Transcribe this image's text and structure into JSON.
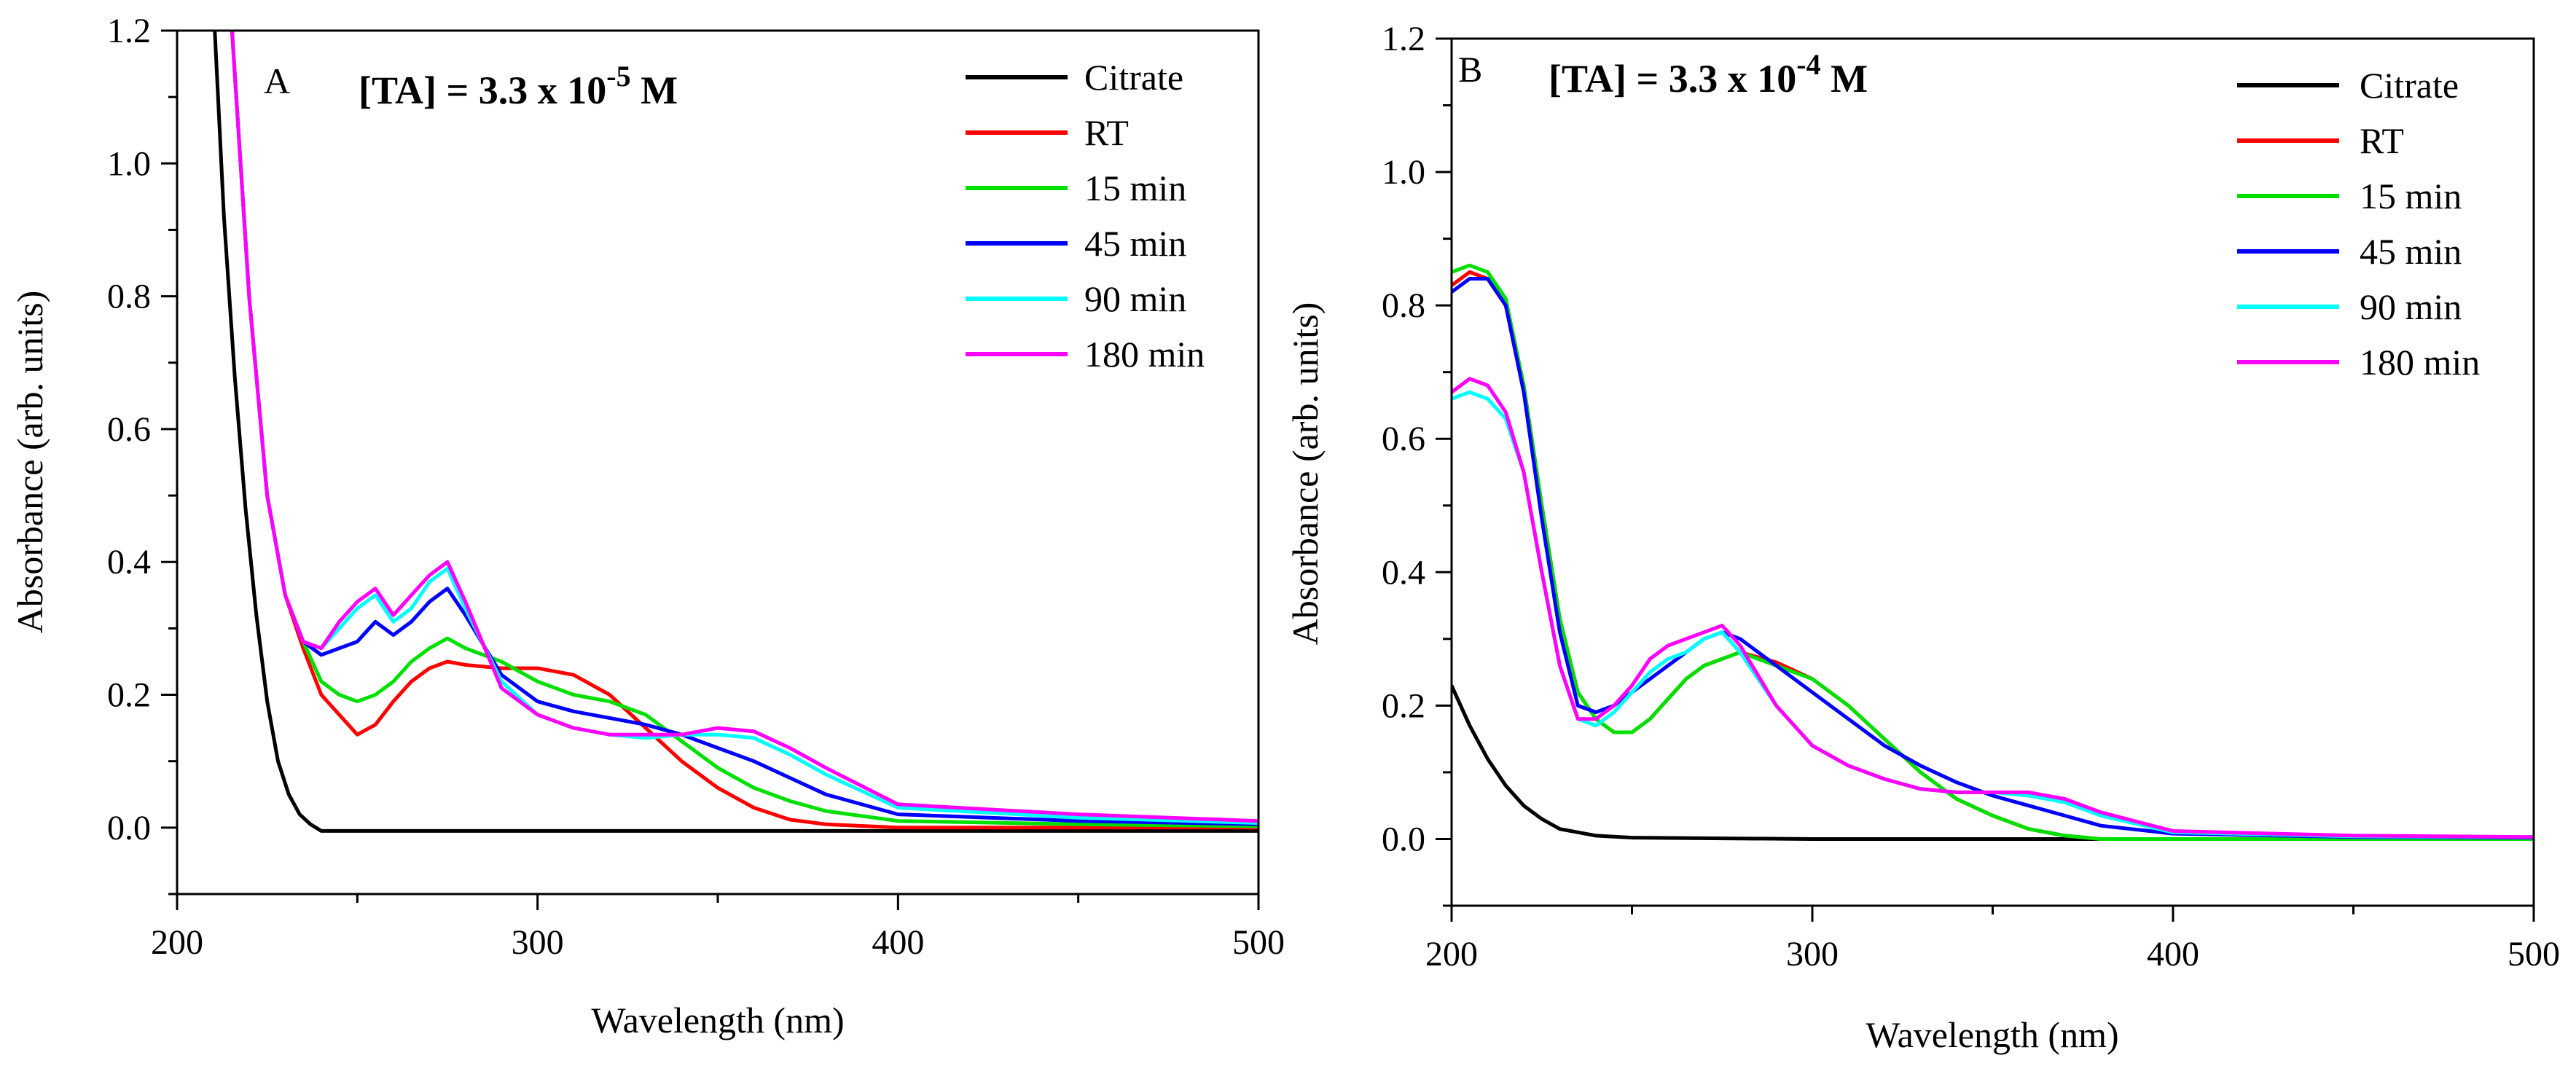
{
  "chart_data": [
    {
      "type": "line",
      "panel_label": "A",
      "annotation": {
        "prefix": "[TA] = 3.3 x 10",
        "exponent": "-5",
        "suffix": " M"
      },
      "xlabel": "Wavelength (nm)",
      "ylabel": "Absorbance (arb. units)",
      "xlim": [
        200,
        500
      ],
      "ylim": [
        -0.1,
        1.2
      ],
      "xticks": [
        200,
        300,
        400,
        500
      ],
      "yticks": [
        0.0,
        0.2,
        0.4,
        0.6,
        0.8,
        1.0,
        1.2
      ],
      "legend_position": "top-right",
      "grid": false,
      "series": [
        {
          "name": "Citrate",
          "color": "#000000",
          "x": [
            210,
            213,
            216,
            219,
            222,
            225,
            228,
            231,
            234,
            237,
            240,
            250,
            300,
            400,
            500
          ],
          "y": [
            1.25,
            0.92,
            0.68,
            0.48,
            0.32,
            0.19,
            0.1,
            0.05,
            0.02,
            0.005,
            -0.005,
            -0.005,
            -0.005,
            -0.005,
            -0.005
          ]
        },
        {
          "name": "RT",
          "color": "#ff0000",
          "x": [
            215,
            220,
            225,
            230,
            235,
            240,
            245,
            250,
            255,
            260,
            265,
            270,
            275,
            280,
            290,
            300,
            310,
            320,
            330,
            340,
            350,
            360,
            370,
            380,
            400,
            450,
            500
          ],
          "y": [
            1.22,
            0.8,
            0.5,
            0.35,
            0.27,
            0.2,
            0.17,
            0.14,
            0.155,
            0.19,
            0.22,
            0.24,
            0.25,
            0.245,
            0.24,
            0.24,
            0.23,
            0.2,
            0.15,
            0.1,
            0.06,
            0.03,
            0.012,
            0.005,
            0.0,
            0.0,
            0.0
          ]
        },
        {
          "name": "15 min",
          "color": "#00e000",
          "x": [
            215,
            220,
            225,
            230,
            235,
            240,
            245,
            250,
            255,
            260,
            265,
            270,
            275,
            280,
            290,
            300,
            310,
            320,
            330,
            340,
            350,
            360,
            370,
            380,
            400,
            450,
            500
          ],
          "y": [
            1.22,
            0.8,
            0.5,
            0.35,
            0.28,
            0.22,
            0.2,
            0.19,
            0.2,
            0.22,
            0.25,
            0.27,
            0.285,
            0.27,
            0.25,
            0.22,
            0.2,
            0.19,
            0.17,
            0.13,
            0.09,
            0.06,
            0.04,
            0.025,
            0.01,
            0.005,
            0.002
          ]
        },
        {
          "name": "45 min",
          "color": "#0000ff",
          "x": [
            215,
            220,
            225,
            230,
            235,
            240,
            245,
            250,
            255,
            260,
            265,
            270,
            275,
            280,
            290,
            300,
            310,
            320,
            330,
            340,
            350,
            360,
            370,
            380,
            400,
            450,
            500
          ],
          "y": [
            1.22,
            0.8,
            0.5,
            0.35,
            0.28,
            0.26,
            0.27,
            0.28,
            0.31,
            0.29,
            0.31,
            0.34,
            0.36,
            0.32,
            0.23,
            0.19,
            0.175,
            0.165,
            0.155,
            0.14,
            0.12,
            0.1,
            0.075,
            0.05,
            0.02,
            0.01,
            0.005
          ]
        },
        {
          "name": "90 min",
          "color": "#00ffff",
          "x": [
            215,
            220,
            225,
            230,
            235,
            240,
            245,
            250,
            255,
            260,
            265,
            270,
            275,
            280,
            290,
            300,
            310,
            320,
            330,
            340,
            350,
            360,
            370,
            380,
            400,
            450,
            500
          ],
          "y": [
            1.22,
            0.8,
            0.5,
            0.35,
            0.28,
            0.27,
            0.3,
            0.33,
            0.35,
            0.31,
            0.33,
            0.37,
            0.39,
            0.33,
            0.22,
            0.17,
            0.15,
            0.14,
            0.135,
            0.14,
            0.14,
            0.135,
            0.11,
            0.08,
            0.03,
            0.015,
            0.007
          ]
        },
        {
          "name": "180 min",
          "color": "#ff00ff",
          "x": [
            215,
            220,
            225,
            230,
            235,
            240,
            245,
            250,
            255,
            260,
            265,
            270,
            275,
            280,
            290,
            300,
            310,
            320,
            330,
            340,
            350,
            360,
            370,
            380,
            400,
            450,
            500
          ],
          "y": [
            1.22,
            0.8,
            0.5,
            0.35,
            0.28,
            0.27,
            0.31,
            0.34,
            0.36,
            0.32,
            0.35,
            0.38,
            0.4,
            0.34,
            0.21,
            0.17,
            0.15,
            0.14,
            0.14,
            0.14,
            0.15,
            0.145,
            0.12,
            0.09,
            0.035,
            0.02,
            0.01
          ]
        }
      ]
    },
    {
      "type": "line",
      "panel_label": "B",
      "annotation": {
        "prefix": "[TA] = 3.3 x 10",
        "exponent": "-4",
        "suffix": " M"
      },
      "xlabel": "Wavelength (nm)",
      "ylabel": "Absorbance (arb. units)",
      "xlim": [
        200,
        500
      ],
      "ylim": [
        -0.1,
        1.2
      ],
      "xticks": [
        200,
        300,
        400,
        500
      ],
      "yticks": [
        0.0,
        0.2,
        0.4,
        0.6,
        0.8,
        1.0,
        1.2
      ],
      "legend_position": "top-right",
      "grid": false,
      "series": [
        {
          "name": "Citrate",
          "color": "#000000",
          "x": [
            200,
            205,
            210,
            215,
            220,
            225,
            230,
            235,
            240,
            250,
            300,
            400,
            500
          ],
          "y": [
            0.23,
            0.17,
            0.12,
            0.08,
            0.05,
            0.03,
            0.015,
            0.01,
            0.005,
            0.002,
            0.0,
            0.0,
            0.0
          ]
        },
        {
          "name": "RT",
          "color": "#ff0000",
          "x": [
            200,
            205,
            210,
            215,
            220,
            225,
            230,
            235,
            240,
            245,
            250,
            255,
            260,
            265,
            270,
            275,
            280,
            290,
            300,
            310,
            320,
            330,
            340,
            350,
            360,
            370,
            380,
            400,
            450,
            500
          ],
          "y": [
            0.83,
            0.85,
            0.84,
            0.8,
            0.68,
            0.5,
            0.33,
            0.22,
            0.18,
            0.16,
            0.16,
            0.18,
            0.21,
            0.24,
            0.26,
            0.27,
            0.28,
            0.265,
            0.24,
            0.2,
            0.15,
            0.1,
            0.06,
            0.035,
            0.015,
            0.005,
            0.0,
            0.0,
            0.0,
            0.0
          ]
        },
        {
          "name": "15 min",
          "color": "#00e000",
          "x": [
            200,
            205,
            210,
            215,
            220,
            225,
            230,
            235,
            240,
            245,
            250,
            255,
            260,
            265,
            270,
            275,
            280,
            290,
            300,
            310,
            320,
            330,
            340,
            350,
            360,
            370,
            380,
            400,
            450,
            500
          ],
          "y": [
            0.85,
            0.86,
            0.85,
            0.81,
            0.68,
            0.5,
            0.33,
            0.22,
            0.18,
            0.16,
            0.16,
            0.18,
            0.21,
            0.24,
            0.26,
            0.27,
            0.28,
            0.26,
            0.24,
            0.2,
            0.15,
            0.1,
            0.06,
            0.035,
            0.015,
            0.005,
            0.0,
            0.0,
            0.0,
            0.0
          ]
        },
        {
          "name": "45 min",
          "color": "#0000ff",
          "x": [
            200,
            205,
            210,
            215,
            220,
            225,
            230,
            235,
            240,
            245,
            250,
            255,
            260,
            265,
            270,
            275,
            280,
            290,
            300,
            310,
            320,
            330,
            340,
            350,
            360,
            370,
            380,
            400,
            450,
            500
          ],
          "y": [
            0.82,
            0.84,
            0.84,
            0.8,
            0.67,
            0.48,
            0.31,
            0.2,
            0.19,
            0.2,
            0.22,
            0.24,
            0.26,
            0.28,
            0.3,
            0.31,
            0.3,
            0.26,
            0.22,
            0.18,
            0.14,
            0.11,
            0.085,
            0.065,
            0.05,
            0.035,
            0.02,
            0.008,
            0.003,
            0.002
          ]
        },
        {
          "name": "90 min",
          "color": "#00ffff",
          "x": [
            200,
            205,
            210,
            215,
            220,
            225,
            230,
            235,
            240,
            245,
            250,
            255,
            260,
            265,
            270,
            275,
            280,
            290,
            300,
            310,
            320,
            330,
            340,
            350,
            360,
            370,
            380,
            400,
            450,
            500
          ],
          "y": [
            0.66,
            0.67,
            0.66,
            0.63,
            0.55,
            0.4,
            0.26,
            0.18,
            0.17,
            0.19,
            0.22,
            0.25,
            0.27,
            0.28,
            0.3,
            0.31,
            0.28,
            0.2,
            0.14,
            0.11,
            0.09,
            0.075,
            0.07,
            0.07,
            0.065,
            0.055,
            0.035,
            0.01,
            0.004,
            0.003
          ]
        },
        {
          "name": "180 min",
          "color": "#ff00ff",
          "x": [
            200,
            205,
            210,
            215,
            220,
            225,
            230,
            235,
            240,
            245,
            250,
            255,
            260,
            265,
            270,
            275,
            280,
            290,
            300,
            310,
            320,
            330,
            340,
            350,
            360,
            370,
            380,
            400,
            450,
            500
          ],
          "y": [
            0.67,
            0.69,
            0.68,
            0.64,
            0.55,
            0.4,
            0.26,
            0.18,
            0.18,
            0.2,
            0.23,
            0.27,
            0.29,
            0.3,
            0.31,
            0.32,
            0.29,
            0.2,
            0.14,
            0.11,
            0.09,
            0.075,
            0.07,
            0.07,
            0.07,
            0.06,
            0.04,
            0.012,
            0.005,
            0.003
          ]
        }
      ]
    }
  ]
}
